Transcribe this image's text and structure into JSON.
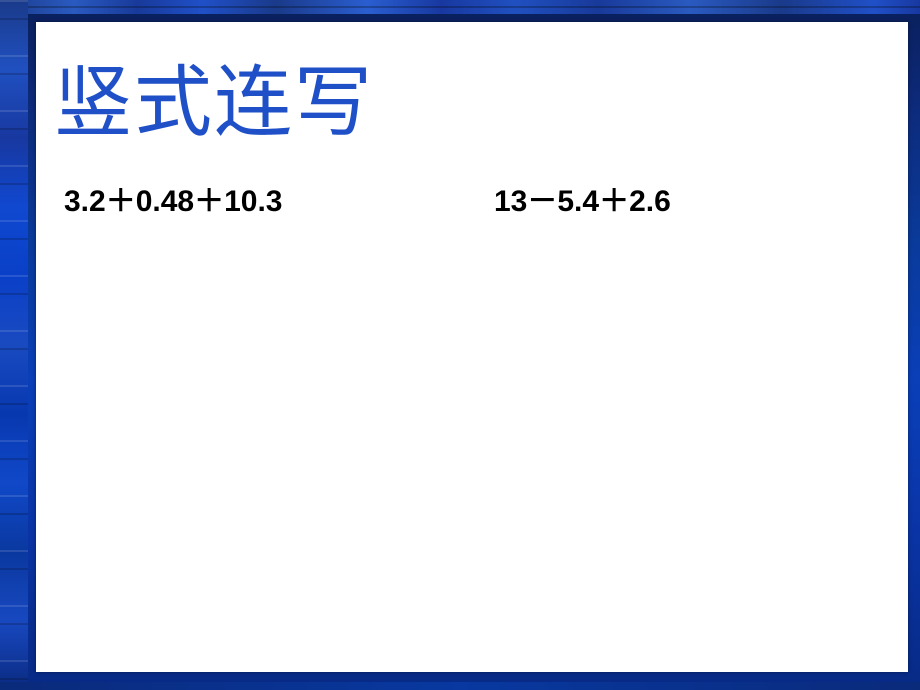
{
  "slide": {
    "title": "竖式连写",
    "title_color": "#1f50c8",
    "title_fontsize": 78,
    "equations": {
      "left": "3.2＋0.48＋10.3",
      "right": "13－5.4＋2.6"
    },
    "equation_color": "#000000",
    "equation_fontsize": 30,
    "panel_background": "#ffffff",
    "frame_gradient": [
      "#0a1f5a",
      "#0d2a7a",
      "#0a3a9a",
      "#0a3fb8",
      "#0a35a8",
      "#082a85"
    ]
  }
}
